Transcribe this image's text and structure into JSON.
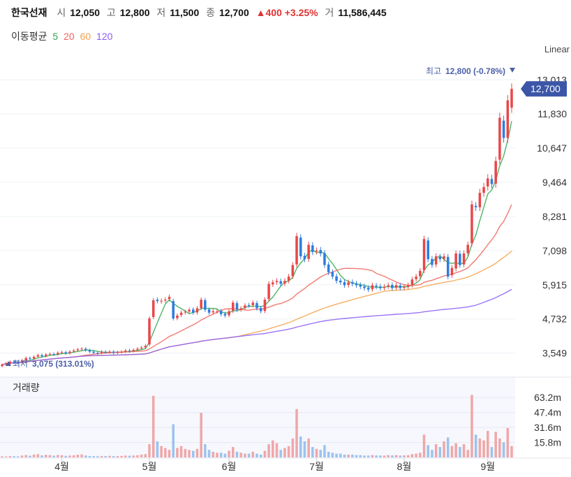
{
  "header": {
    "name": "한국선재",
    "open_label": "시",
    "open": "12,050",
    "high_label": "고",
    "high": "12,800",
    "low_label": "저",
    "low": "11,500",
    "close_label": "종",
    "close": "12,700",
    "change": "▲400 +3.25%",
    "volume_label": "거",
    "volume": "11,586,445"
  },
  "ma_legend": {
    "label": "이동평균",
    "items": [
      {
        "period": "5",
        "color": "#2fa84f"
      },
      {
        "period": "20",
        "color": "#f0635b"
      },
      {
        "period": "60",
        "color": "#f4a14a"
      },
      {
        "period": "120",
        "color": "#8a5cf6"
      }
    ]
  },
  "chart_data": {
    "type": "candlestick",
    "scale_label": "Linear",
    "y_ticks": [
      "13,013",
      "11,830",
      "10,647",
      "9,464",
      "8,281",
      "7,098",
      "5,915",
      "4,732",
      "3,549"
    ],
    "y_tick_values": [
      13013,
      11830,
      10647,
      9464,
      8281,
      7098,
      5915,
      4732,
      3549
    ],
    "y_range": [
      2960,
      13600
    ],
    "x_ticks": [
      {
        "label": "4월",
        "index": 15
      },
      {
        "label": "5월",
        "index": 37
      },
      {
        "label": "6월",
        "index": 57
      },
      {
        "label": "7월",
        "index": 79
      },
      {
        "label": "8월",
        "index": 101
      },
      {
        "label": "9월",
        "index": 122
      }
    ],
    "last_price": "12,700",
    "last_price_value": 12700,
    "max_label": "최고",
    "max_value": "12,800 (-0.78%)",
    "min_label": "최저",
    "min_value": "3,075 (313.01%)",
    "closes": [
      3150,
      3200,
      3250,
      3250,
      3220,
      3300,
      3380,
      3350,
      3420,
      3480,
      3440,
      3500,
      3520,
      3500,
      3560,
      3580,
      3540,
      3600,
      3640,
      3680,
      3700,
      3650,
      3600,
      3560,
      3540,
      3600,
      3580,
      3600,
      3560,
      3580,
      3600,
      3640,
      3620,
      3660,
      3700,
      3740,
      3800,
      4750,
      5380,
      5350,
      5360,
      5400,
      5500,
      4750,
      4850,
      4950,
      4980,
      5050,
      4950,
      5100,
      5400,
      5050,
      4950,
      5000,
      5000,
      4900,
      4850,
      5000,
      5300,
      5050,
      5100,
      5200,
      5200,
      5300,
      5100,
      5000,
      5400,
      5950,
      6000,
      6050,
      5950,
      6050,
      6200,
      6600,
      7600,
      6900,
      6800,
      7300,
      7050,
      7100,
      7000,
      6600,
      6350,
      6200,
      6050,
      6000,
      5900,
      6000,
      5950,
      5900,
      5850,
      5800,
      5750,
      5900,
      5850,
      5800,
      5850,
      5900,
      5800,
      5900,
      5800,
      5850,
      5900,
      6100,
      6200,
      6400,
      7500,
      6800,
      6600,
      6900,
      6800,
      6900,
      6200,
      6500,
      7000,
      6600,
      7000,
      7300,
      8700,
      8600,
      9100,
      9300,
      9600,
      9400,
      10200,
      11700,
      11000,
      12300,
      12700
    ],
    "opens": [
      3100,
      3150,
      3200,
      3260,
      3250,
      3240,
      3300,
      3380,
      3360,
      3430,
      3480,
      3450,
      3510,
      3520,
      3510,
      3560,
      3580,
      3550,
      3610,
      3650,
      3680,
      3700,
      3650,
      3600,
      3560,
      3560,
      3590,
      3590,
      3600,
      3570,
      3590,
      3610,
      3640,
      3630,
      3670,
      3710,
      3750,
      3850,
      4800,
      5400,
      5340,
      5370,
      5420,
      5350,
      4760,
      4870,
      4960,
      4990,
      5060,
      4960,
      5110,
      5380,
      5060,
      4960,
      4990,
      5010,
      4910,
      4860,
      5010,
      5280,
      5060,
      5110,
      5210,
      5210,
      5280,
      5110,
      5010,
      5420,
      5930,
      6010,
      6040,
      5960,
      6060,
      6210,
      6620,
      7550,
      6920,
      6810,
      7280,
      7070,
      7120,
      7010,
      6620,
      6360,
      6210,
      6060,
      6010,
      5910,
      6010,
      5960,
      5910,
      5860,
      5810,
      5760,
      5890,
      5860,
      5810,
      5860,
      5910,
      5810,
      5890,
      5810,
      5850,
      5910,
      6110,
      6210,
      6420,
      7450,
      6810,
      6620,
      6880,
      6810,
      6880,
      6250,
      6480,
      6990,
      6620,
      7010,
      7350,
      8650,
      8600,
      9100,
      9320,
      9580,
      9420,
      10250,
      11600,
      11000,
      12050
    ],
    "volumes": [
      1.2,
      1.0,
      1.5,
      1.3,
      1.1,
      2.0,
      2.5,
      1.8,
      3.0,
      3.5,
      2.2,
      2.8,
      2.5,
      1.9,
      2.6,
      2.4,
      1.7,
      2.0,
      2.3,
      2.9,
      3.2,
      2.1,
      1.5,
      1.4,
      1.3,
      1.6,
      1.5,
      1.7,
      1.4,
      1.5,
      1.6,
      2.0,
      1.8,
      2.1,
      2.4,
      3.0,
      3.5,
      14.0,
      65.0,
      17.0,
      12.0,
      10.0,
      8.0,
      35.0,
      10.0,
      12.0,
      9.0,
      8.0,
      7.0,
      9.0,
      47.0,
      14.0,
      8.0,
      6.0,
      5.0,
      5.0,
      4.0,
      7.0,
      11.0,
      6.0,
      5.0,
      4.0,
      4.0,
      6.0,
      4.0,
      3.0,
      7.0,
      14.0,
      18.0,
      15.0,
      8.0,
      10.0,
      12.0,
      20.0,
      51.0,
      22.0,
      17.0,
      20.0,
      11.0,
      9.0,
      8.0,
      13.0,
      6.0,
      5.0,
      4.0,
      4.0,
      3.0,
      3.0,
      3.0,
      2.5,
      2.5,
      2.0,
      2.0,
      2.5,
      2.2,
      2.0,
      2.0,
      2.5,
      2.2,
      2.5,
      2.0,
      2.2,
      2.5,
      3.5,
      4.0,
      5.0,
      24.0,
      13.0,
      8.0,
      14.0,
      11.0,
      17.0,
      21.0,
      12.0,
      15.0,
      11.0,
      14.0,
      8.0,
      66.0,
      24.0,
      20.0,
      18.0,
      28.0,
      11.0,
      27.0,
      20.0,
      16.0,
      31.0,
      12.0
    ],
    "volume_ticks": [
      "63.2m",
      "47.4m",
      "31.6m",
      "15.8m"
    ],
    "volume_tick_values": [
      63.2,
      47.4,
      31.6,
      15.8
    ],
    "volume_max": 70,
    "volume_title": "거래량"
  }
}
